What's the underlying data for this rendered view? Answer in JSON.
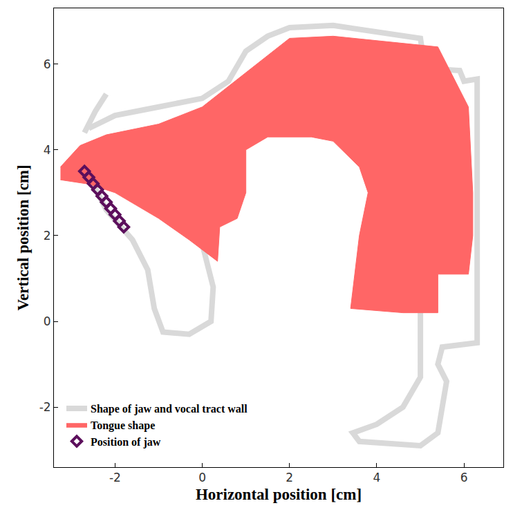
{
  "chart_data": {
    "type": "line",
    "xlabel": "Horizontal position [cm]",
    "ylabel": "Vertical position [cm]",
    "xlim": [
      -3.4,
      6.9
    ],
    "ylim": [
      -3.4,
      7.3
    ],
    "xticks": [
      -2,
      0,
      2,
      4,
      6
    ],
    "yticks": [
      -2,
      0,
      2,
      4,
      6
    ],
    "grid": false,
    "legend": "bottom left",
    "series": [
      {
        "name": "Shape of jaw and vocal tract wall",
        "type": "line",
        "color": "#d9d9d9",
        "line_style": "solid",
        "x": [
          -2.2,
          -2.45,
          -2.7,
          null,
          -2.6,
          -2.0,
          -1.0,
          0.0,
          0.6,
          1.0,
          1.5,
          2.0,
          3.0,
          4.0,
          5.0,
          5.1,
          5.9,
          6.0,
          6.3,
          6.3,
          6.3,
          5.5,
          5.4,
          5.6,
          5.4,
          5.0,
          3.6,
          3.45,
          4.0,
          4.6,
          5.0,
          5.0,
          5.0,
          null,
          -2.4,
          -2.1,
          -1.5,
          -0.6,
          0.0,
          0.25,
          0.2,
          -0.3,
          -0.9,
          -1.1,
          -1.25,
          -1.6,
          -2.2,
          -2.55,
          -2.6,
          -2.4
        ],
        "y": [
          5.3,
          4.9,
          4.4,
          null,
          4.5,
          4.8,
          5.0,
          5.2,
          5.6,
          6.3,
          6.65,
          6.85,
          6.9,
          6.75,
          6.6,
          5.9,
          5.85,
          5.6,
          5.65,
          2.0,
          -0.5,
          -0.6,
          -1.0,
          -1.4,
          -2.6,
          -2.9,
          -2.8,
          -2.6,
          -2.4,
          -2.0,
          -1.3,
          -0.5,
          0.2,
          null,
          4.05,
          3.95,
          3.3,
          2.7,
          1.8,
          0.8,
          0.0,
          -0.3,
          -0.25,
          0.3,
          1.2,
          1.9,
          2.6,
          3.3,
          3.8,
          4.05
        ]
      },
      {
        "name": "Tongue shape",
        "type": "area",
        "color": "#ff6666",
        "line_style": "solid",
        "x": [
          -3.25,
          -2.8,
          -2.2,
          -1.0,
          0.0,
          1.0,
          2.0,
          3.0,
          4.5,
          5.4,
          6.1,
          6.2,
          6.2,
          6.1,
          5.4,
          5.4,
          4.6,
          3.4,
          3.6,
          3.8,
          3.6,
          3.0,
          2.5,
          1.5,
          1.0,
          1.0,
          0.8,
          0.4,
          0.35,
          -0.3,
          -1.0,
          -2.0,
          -2.6,
          -3.25
        ],
        "y": [
          3.6,
          4.1,
          4.35,
          4.6,
          5.0,
          5.8,
          6.6,
          6.65,
          6.5,
          6.4,
          5.0,
          3.0,
          2.0,
          1.1,
          1.1,
          0.2,
          0.2,
          0.3,
          2.0,
          3.0,
          3.6,
          4.2,
          4.3,
          4.3,
          4.0,
          3.0,
          2.4,
          2.2,
          1.4,
          1.9,
          2.4,
          3.0,
          3.2,
          3.3
        ]
      },
      {
        "name": "Position of jaw",
        "type": "scatter",
        "color": "#5c0f5c",
        "marker": "diamond-open",
        "x": [
          -2.7,
          -2.6,
          -2.5,
          -2.4,
          -2.3,
          -2.2,
          -2.1,
          -2.0,
          -1.9,
          -1.8
        ],
        "y": [
          3.5,
          3.36,
          3.21,
          3.07,
          2.92,
          2.78,
          2.63,
          2.49,
          2.34,
          2.2
        ]
      }
    ]
  }
}
